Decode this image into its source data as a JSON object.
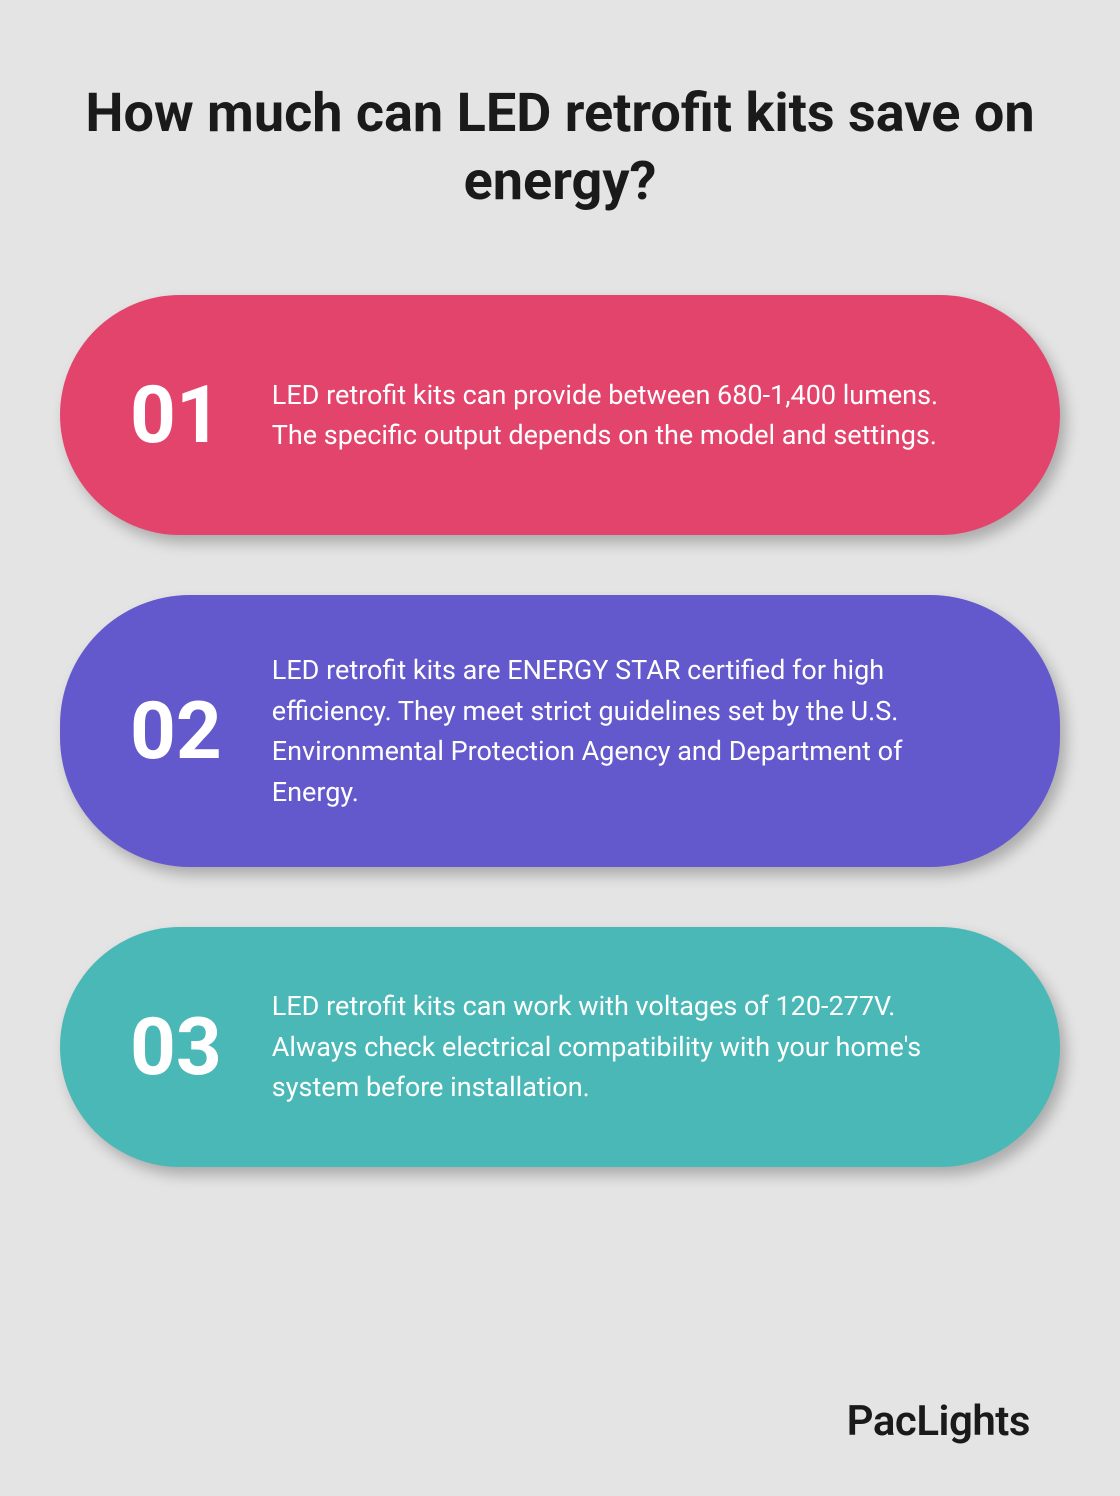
{
  "title": "How much can LED retrofit kits save on energy?",
  "cards": [
    {
      "number": "01",
      "text": "LED retrofit kits can provide between 680-1,400 lumens. The specific output depends on the model and settings.",
      "background_color": "#e3446b"
    },
    {
      "number": "02",
      "text": "LED retrofit kits are ENERGY STAR certified for high efficiency. They meet strict guidelines set by the U.S. Environmental Protection Agency and Department of Energy.",
      "background_color": "#6359cc"
    },
    {
      "number": "03",
      "text": "LED retrofit kits can work with voltages of 120-277V. Always check electrical compatibility with your home's system before installation.",
      "background_color": "#4ab8b6"
    }
  ],
  "brand": "PacLights",
  "styling": {
    "page_background": "#e4e4e4",
    "title_color": "#1a1a1a",
    "title_fontsize": 54,
    "title_fontweight": 700,
    "card_number_color": "#ffffff",
    "card_number_fontsize": 80,
    "card_number_fontweight": 700,
    "card_text_color": "#ffffff",
    "card_text_fontsize": 27,
    "card_border_radius": 130,
    "card_shadow": "6px 8px 14px rgba(0,0,0,0.25)",
    "brand_color": "#1a1a1a",
    "brand_fontsize": 42,
    "brand_fontweight": 600
  }
}
